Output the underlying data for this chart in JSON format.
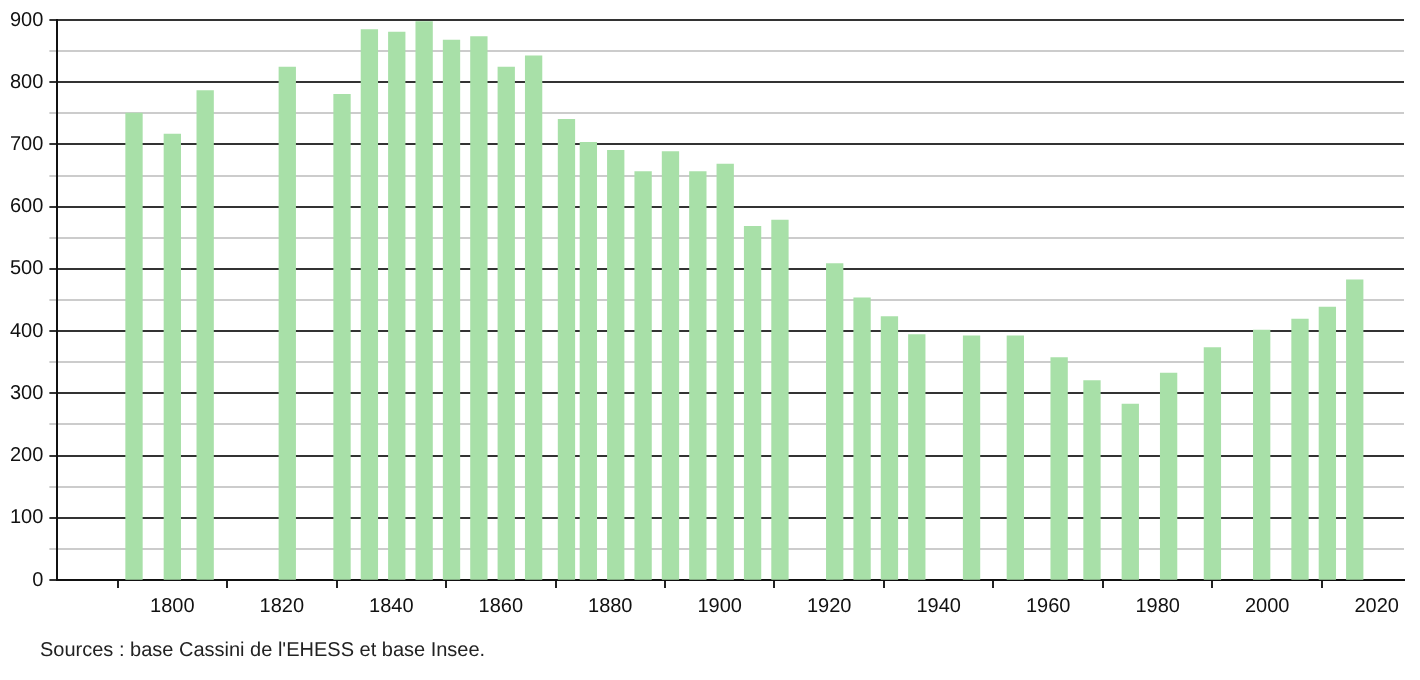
{
  "chart_data": {
    "type": "bar",
    "x": [
      1793,
      1800,
      1806,
      1821,
      1831,
      1836,
      1841,
      1846,
      1851,
      1856,
      1861,
      1866,
      1872,
      1876,
      1881,
      1886,
      1891,
      1896,
      1901,
      1906,
      1911,
      1921,
      1926,
      1931,
      1936,
      1946,
      1954,
      1962,
      1968,
      1975,
      1982,
      1990,
      1999,
      2006,
      2011,
      2016
    ],
    "values": [
      750,
      716,
      786,
      824,
      780,
      884,
      880,
      897,
      867,
      873,
      824,
      842,
      740,
      703,
      690,
      656,
      688,
      656,
      668,
      568,
      578,
      508,
      453,
      423,
      394,
      392,
      392,
      357,
      320,
      282,
      332,
      373,
      401,
      419,
      438,
      482
    ],
    "color": "#a8e0a8",
    "xlim": [
      1779,
      2025
    ],
    "xticks": [
      1800,
      1820,
      1840,
      1860,
      1880,
      1900,
      1920,
      1940,
      1960,
      1980,
      2000,
      2020
    ],
    "ylim": [
      0,
      900
    ],
    "yticks": [
      0,
      {
        "value": 50,
        "label": null
      },
      100,
      {
        "value": 150,
        "label": null
      },
      200,
      {
        "value": 250,
        "label": null
      },
      300,
      {
        "value": 350,
        "label": null
      },
      400,
      {
        "value": 450,
        "label": null
      },
      500,
      {
        "value": 550,
        "label": null
      },
      600,
      {
        "value": 650,
        "label": null
      },
      700,
      {
        "value": 750,
        "label": null
      },
      800,
      {
        "value": 850,
        "label": null
      },
      900
    ],
    "grid": "y",
    "annotations": [
      "Sources : base Cassini de l'EHESS et base Insee."
    ]
  }
}
